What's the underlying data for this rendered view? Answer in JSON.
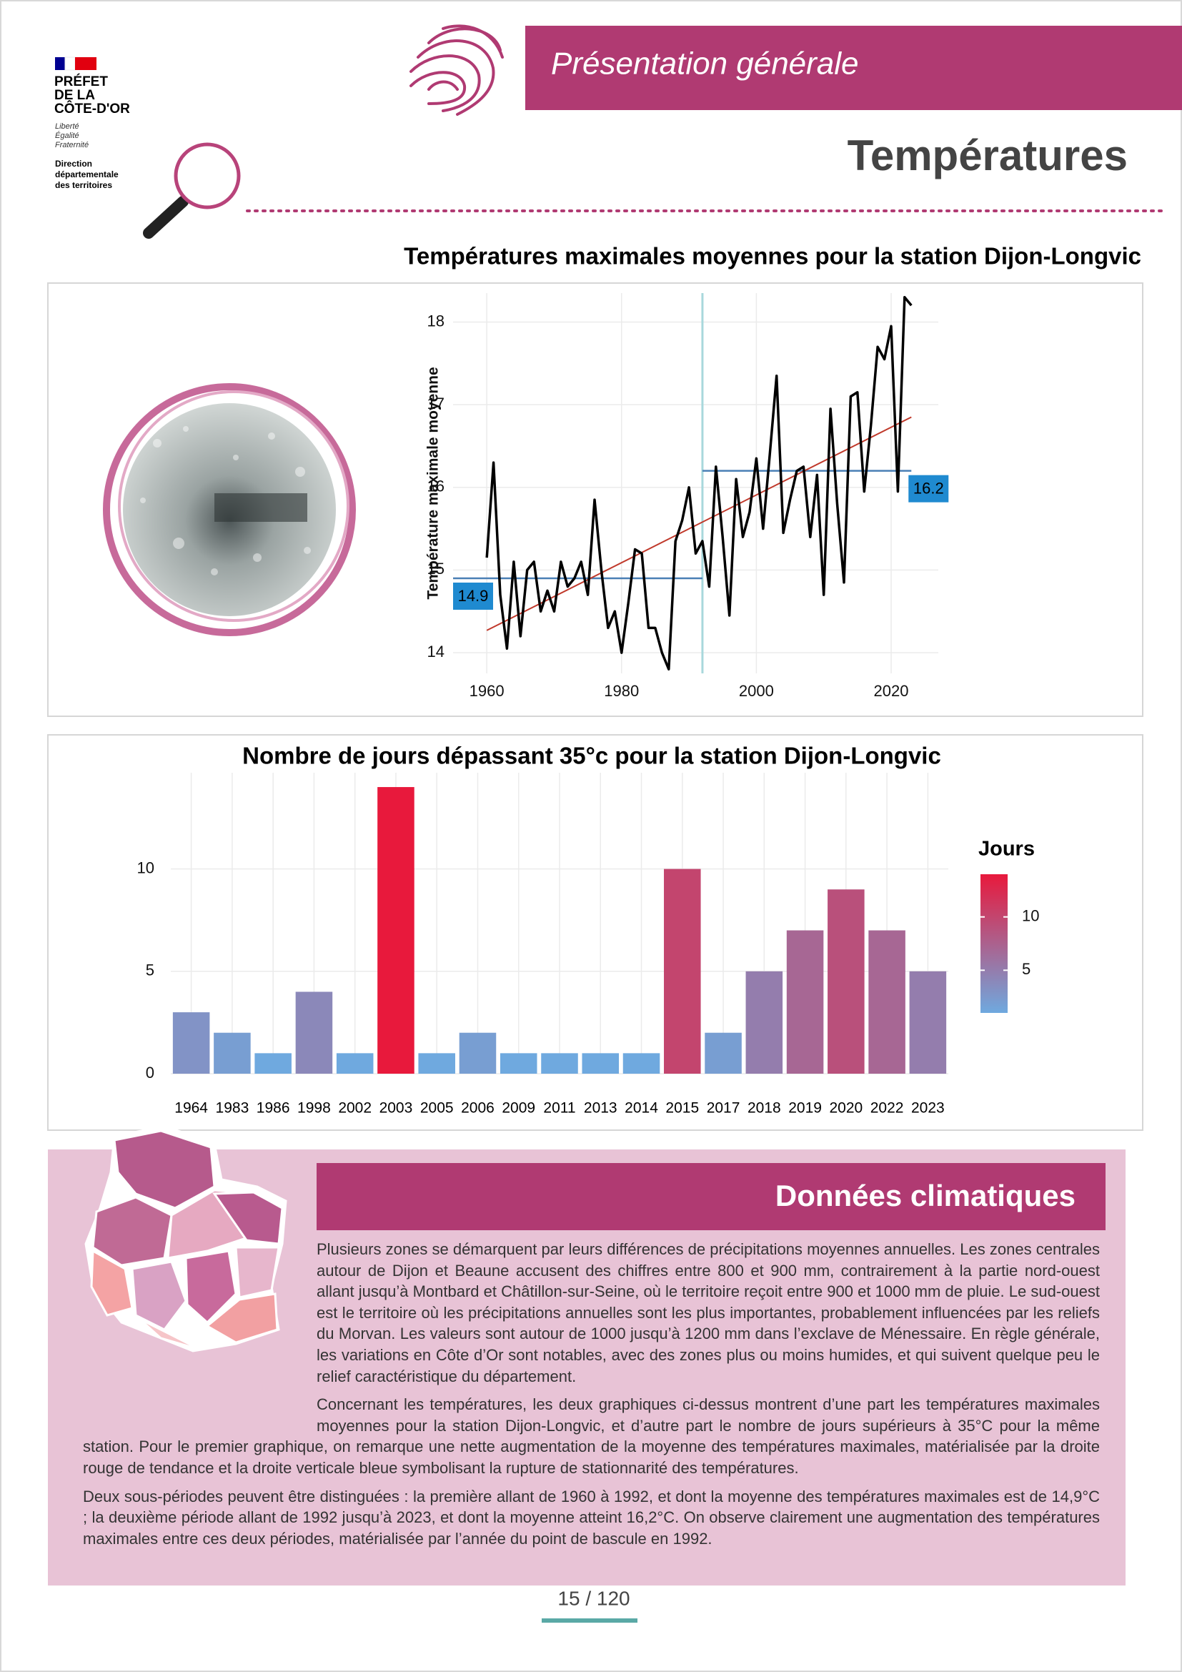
{
  "header": {
    "logo": [
      "PRÉFET",
      "DE LA",
      "CÔTE-D'OR"
    ],
    "motto": [
      "Liberté",
      "Égalité",
      "Fraternité"
    ],
    "direction": [
      "Direction",
      "départementale",
      "des territoires"
    ],
    "banner": "Présentation générale",
    "title": "Températures"
  },
  "chart_data": [
    {
      "type": "line",
      "title": "Températures maximales moyennes pour la station Dijon-Longvic",
      "y_label": "Température maximale moyenne",
      "x": [
        1960,
        1961,
        1962,
        1963,
        1964,
        1965,
        1966,
        1967,
        1968,
        1969,
        1970,
        1971,
        1972,
        1973,
        1974,
        1975,
        1976,
        1977,
        1978,
        1979,
        1980,
        1981,
        1982,
        1983,
        1984,
        1985,
        1986,
        1987,
        1988,
        1989,
        1990,
        1991,
        1992,
        1993,
        1994,
        1995,
        1996,
        1997,
        1998,
        1999,
        2000,
        2001,
        2002,
        2003,
        2004,
        2005,
        2006,
        2007,
        2008,
        2009,
        2010,
        2011,
        2012,
        2013,
        2014,
        2015,
        2016,
        2017,
        2018,
        2019,
        2020,
        2021,
        2022,
        2023
      ],
      "values": [
        15.15,
        16.3,
        14.7,
        14.05,
        15.1,
        14.2,
        15.0,
        15.1,
        14.5,
        14.75,
        14.5,
        15.1,
        14.8,
        14.9,
        15.1,
        14.7,
        15.85,
        15.0,
        14.3,
        14.5,
        14.0,
        14.6,
        15.25,
        15.2,
        14.3,
        14.3,
        14.0,
        13.8,
        15.35,
        15.6,
        16.0,
        15.2,
        15.35,
        14.8,
        16.25,
        15.4,
        14.45,
        16.1,
        15.4,
        15.7,
        16.35,
        15.5,
        16.4,
        17.35,
        15.45,
        15.85,
        16.2,
        16.25,
        15.4,
        16.15,
        14.7,
        16.95,
        15.8,
        14.85,
        17.1,
        17.15,
        15.95,
        16.75,
        17.7,
        17.55,
        17.95,
        15.95,
        18.3,
        18.2
      ],
      "color": "#000000",
      "trend": {
        "x": [
          1960,
          2023
        ],
        "values": [
          14.27,
          16.85
        ],
        "color": "#c0392b"
      },
      "means": [
        {
          "value": 14.9,
          "x": [
            1955,
            1992
          ]
        },
        {
          "value": 16.2,
          "x": [
            1992,
            2023
          ]
        }
      ],
      "mean_color": "#4a7fb5",
      "label_color": "#1f8ad0",
      "breakpoint": 1992,
      "breakpoint_color": "#a8d8dc",
      "xlim": [
        1955,
        2027
      ],
      "ylim": [
        13.75,
        18.35
      ],
      "xticks": [
        1960,
        1980,
        2000,
        2020
      ],
      "yticks": [
        14,
        15,
        16,
        17,
        18
      ],
      "grid": true
    },
    {
      "type": "bar",
      "title": "Nombre de jours dépassant 35°c pour la station Dijon-Longvic",
      "categories": [
        "1964",
        "1983",
        "1986",
        "1998",
        "2002",
        "2003",
        "2005",
        "2006",
        "2009",
        "2011",
        "2013",
        "2014",
        "2015",
        "2017",
        "2018",
        "2019",
        "2020",
        "2022",
        "2023"
      ],
      "values": [
        3,
        2,
        1,
        4,
        1,
        14,
        1,
        2,
        1,
        1,
        1,
        1,
        10,
        2,
        5,
        7,
        9,
        7,
        5
      ],
      "color_scale": {
        "low": "#6fa9df",
        "high": "#e8193c",
        "range": [
          1,
          14
        ]
      },
      "legend": {
        "title": "Jours",
        "ticks": [
          5,
          10
        ]
      },
      "ylim": [
        0,
        14.7
      ],
      "yticks": [
        0,
        5,
        10
      ],
      "grid": true
    }
  ],
  "section": {
    "title": "Données climatiques",
    "paragraphs": [
      "Plusieurs zones se démarquent par leurs différences de précipitations moyennes annuelles. Les zones centrales autour de Dijon et Beaune accusent des chiffres entre 800 et 900 mm, contrairement à la partie nord-ouest allant jusqu’à Montbard et Châtillon-sur-Seine, où le territoire reçoit entre 900 et 1000 mm de pluie. Le sud-ouest est le territoire où les précipitations annuelles sont les plus importantes, probablement influencées par les reliefs du Morvan. Les valeurs sont autour de 1000 jusqu’à 1200 mm dans l’exclave de Ménessaire. En règle générale, les variations en Côte d’Or sont notables, avec des zones plus ou moins humides, et qui suivent quelque peu le relief caractéristique du département.",
      "Concernant les températures, les deux graphiques ci-dessus montrent d’une part les températures maximales moyennes pour la station Dijon-Longvic, et d’autre part le nombre de jours supérieurs à 35°C pour la même station. Pour le premier graphique, on remarque une nette augmentation de la moyenne des températures maximales, matérialisée par la droite rouge de tendance et la droite verticale bleue symbolisant la rupture de stationnarité des températures.",
      "Deux sous-périodes peuvent être distinguées : la première allant de 1960 à 1992, et dont la moyenne des températures maximales est de 14,9°C ; la deuxième période allant de 1992 jusqu’à 2023, et dont la moyenne atteint 16,2°C. On observe clairement une augmentation des températures maximales entre ces deux périodes, matérialisée par l’année du point de bascule en 1992."
    ]
  },
  "footer": {
    "page": "15 / 120"
  }
}
